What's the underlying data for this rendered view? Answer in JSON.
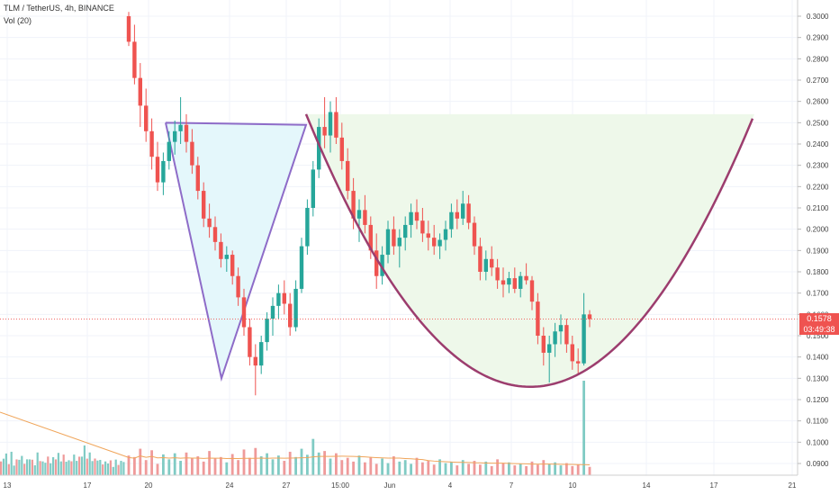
{
  "header": {
    "symbol": "TLM / TetherUS, 4h, BINANCE",
    "volume_indicator": "Vol (20)"
  },
  "colors": {
    "up": "#26a69a",
    "down": "#ef5350",
    "pattern_line": "#8e6cc8",
    "cup_line": "#9c3d6e",
    "wedge_fill": "#e4f7fb",
    "cup_fill": "#eef8ea",
    "vol_ma": "#f0a55a"
  },
  "current_price": {
    "value": "0.1578",
    "countdown": "03:49:38"
  },
  "chart_data": {
    "type": "candlestick",
    "title": "TLM / TetherUS, 4h, BINANCE",
    "yaxis": {
      "ticks": [
        "0.3000",
        "0.2900",
        "0.2800",
        "0.2700",
        "0.2600",
        "0.2500",
        "0.2400",
        "0.2300",
        "0.2200",
        "0.2100",
        "0.2000",
        "0.1900",
        "0.1800",
        "0.1700",
        "0.1600",
        "0.1500",
        "0.1400",
        "0.1300",
        "0.1200",
        "0.1100",
        "0.1000",
        "0.0900"
      ],
      "side": "right"
    },
    "xaxis": {
      "ticks": [
        "13",
        "17",
        "20",
        "24",
        "27",
        "15:00",
        "Jun",
        "4",
        "7",
        "10",
        "14",
        "17",
        "21"
      ]
    },
    "grid": true,
    "series": [
      {
        "kind": "ohlc",
        "bar_interval": "4h",
        "ohlc": [
          [
            0.3,
            0.302,
            0.286,
            0.288
          ],
          [
            0.288,
            0.296,
            0.268,
            0.271
          ],
          [
            0.271,
            0.278,
            0.248,
            0.258
          ],
          [
            0.258,
            0.266,
            0.241,
            0.246
          ],
          [
            0.246,
            0.252,
            0.228,
            0.234
          ],
          [
            0.234,
            0.241,
            0.218,
            0.222
          ],
          [
            0.222,
            0.236,
            0.216,
            0.232
          ],
          [
            0.232,
            0.246,
            0.228,
            0.241
          ],
          [
            0.241,
            0.251,
            0.235,
            0.246
          ],
          [
            0.246,
            0.262,
            0.24,
            0.249
          ],
          [
            0.249,
            0.254,
            0.236,
            0.241
          ],
          [
            0.241,
            0.247,
            0.226,
            0.23
          ],
          [
            0.23,
            0.234,
            0.214,
            0.218
          ],
          [
            0.218,
            0.222,
            0.201,
            0.205
          ],
          [
            0.205,
            0.212,
            0.196,
            0.201
          ],
          [
            0.201,
            0.206,
            0.19,
            0.194
          ],
          [
            0.194,
            0.198,
            0.182,
            0.186
          ],
          [
            0.186,
            0.192,
            0.18,
            0.188
          ],
          [
            0.188,
            0.19,
            0.174,
            0.178
          ],
          [
            0.178,
            0.182,
            0.164,
            0.168
          ],
          [
            0.168,
            0.172,
            0.15,
            0.154
          ],
          [
            0.154,
            0.158,
            0.136,
            0.14
          ],
          [
            0.14,
            0.146,
            0.122,
            0.136
          ],
          [
            0.136,
            0.15,
            0.132,
            0.147
          ],
          [
            0.147,
            0.161,
            0.143,
            0.158
          ],
          [
            0.158,
            0.168,
            0.15,
            0.164
          ],
          [
            0.164,
            0.174,
            0.158,
            0.17
          ],
          [
            0.17,
            0.176,
            0.16,
            0.165
          ],
          [
            0.165,
            0.17,
            0.15,
            0.154
          ],
          [
            0.154,
            0.176,
            0.152,
            0.172
          ],
          [
            0.172,
            0.196,
            0.17,
            0.192
          ],
          [
            0.192,
            0.214,
            0.188,
            0.21
          ],
          [
            0.21,
            0.232,
            0.206,
            0.228
          ],
          [
            0.228,
            0.252,
            0.224,
            0.248
          ],
          [
            0.248,
            0.262,
            0.238,
            0.244
          ],
          [
            0.244,
            0.26,
            0.236,
            0.255
          ],
          [
            0.255,
            0.262,
            0.24,
            0.243
          ],
          [
            0.243,
            0.25,
            0.228,
            0.232
          ],
          [
            0.232,
            0.238,
            0.214,
            0.218
          ],
          [
            0.218,
            0.224,
            0.2,
            0.205
          ],
          [
            0.205,
            0.214,
            0.194,
            0.209
          ],
          [
            0.209,
            0.216,
            0.198,
            0.202
          ],
          [
            0.202,
            0.206,
            0.186,
            0.19
          ],
          [
            0.19,
            0.198,
            0.172,
            0.178
          ],
          [
            0.178,
            0.192,
            0.174,
            0.188
          ],
          [
            0.188,
            0.204,
            0.184,
            0.2
          ],
          [
            0.2,
            0.206,
            0.188,
            0.192
          ],
          [
            0.192,
            0.2,
            0.182,
            0.196
          ],
          [
            0.196,
            0.206,
            0.19,
            0.202
          ],
          [
            0.202,
            0.212,
            0.196,
            0.208
          ],
          [
            0.208,
            0.214,
            0.2,
            0.204
          ],
          [
            0.204,
            0.21,
            0.194,
            0.198
          ],
          [
            0.198,
            0.204,
            0.19,
            0.196
          ],
          [
            0.196,
            0.202,
            0.188,
            0.192
          ],
          [
            0.192,
            0.198,
            0.186,
            0.195
          ],
          [
            0.195,
            0.204,
            0.19,
            0.2
          ],
          [
            0.2,
            0.212,
            0.196,
            0.208
          ],
          [
            0.208,
            0.214,
            0.2,
            0.205
          ],
          [
            0.205,
            0.218,
            0.202,
            0.212
          ],
          [
            0.212,
            0.216,
            0.2,
            0.203
          ],
          [
            0.203,
            0.206,
            0.188,
            0.192
          ],
          [
            0.192,
            0.196,
            0.176,
            0.18
          ],
          [
            0.18,
            0.19,
            0.176,
            0.186
          ],
          [
            0.186,
            0.192,
            0.178,
            0.182
          ],
          [
            0.182,
            0.186,
            0.172,
            0.176
          ],
          [
            0.176,
            0.182,
            0.168,
            0.174
          ],
          [
            0.174,
            0.18,
            0.17,
            0.177
          ],
          [
            0.177,
            0.182,
            0.17,
            0.172
          ],
          [
            0.172,
            0.18,
            0.168,
            0.178
          ],
          [
            0.178,
            0.184,
            0.174,
            0.176
          ],
          [
            0.176,
            0.178,
            0.162,
            0.166
          ],
          [
            0.166,
            0.17,
            0.146,
            0.15
          ],
          [
            0.15,
            0.154,
            0.136,
            0.142
          ],
          [
            0.142,
            0.15,
            0.128,
            0.146
          ],
          [
            0.146,
            0.156,
            0.14,
            0.152
          ],
          [
            0.152,
            0.16,
            0.146,
            0.155
          ],
          [
            0.155,
            0.158,
            0.142,
            0.146
          ],
          [
            0.146,
            0.15,
            0.134,
            0.138
          ],
          [
            0.138,
            0.144,
            0.132,
            0.137
          ],
          [
            0.137,
            0.17,
            0.136,
            0.16
          ],
          [
            0.16,
            0.162,
            0.154,
            0.1578
          ]
        ]
      },
      {
        "kind": "volume",
        "values": [
          52,
          48,
          70,
          40,
          66,
          30,
          55,
          42,
          58,
          38,
          60,
          46,
          50,
          36,
          64,
          44,
          48,
          34,
          56,
          40,
          68,
          46,
          72,
          50,
          58,
          42,
          52,
          38,
          62,
          48,
          70,
          54,
          96,
          60,
          64,
          44,
          58,
          40,
          46,
          36,
          52,
          34,
          48,
          30,
          44,
          32,
          50,
          36,
          40,
          30,
          46,
          34,
          38,
          28,
          42,
          32,
          36,
          26,
          40,
          30,
          38,
          28,
          36,
          24,
          42,
          32,
          34,
          26,
          30,
          24,
          36,
          28,
          40,
          30,
          34,
          26,
          32,
          24,
          28,
          250,
          22
        ]
      },
      {
        "kind": "volume_ma",
        "period": 20
      }
    ],
    "annotations": [
      {
        "type": "triangle",
        "points": [
          [
            0.0,
            0.25
          ],
          [
            0.43,
            0.249
          ],
          [
            0.29,
            0.129
          ]
        ]
      },
      {
        "type": "cup",
        "rim_price": 0.254,
        "bottom_price": 0.126
      }
    ]
  }
}
